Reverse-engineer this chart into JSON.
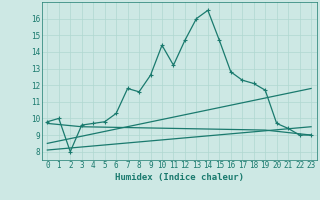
{
  "xlabel": "Humidex (Indice chaleur)",
  "background_color": "#cde8e4",
  "grid_color": "#b0d8d0",
  "line_color": "#1a7a6e",
  "xlim": [
    -0.5,
    23.5
  ],
  "ylim": [
    7.5,
    17.0
  ],
  "yticks": [
    8,
    9,
    10,
    11,
    12,
    13,
    14,
    15,
    16
  ],
  "xticks": [
    0,
    1,
    2,
    3,
    4,
    5,
    6,
    7,
    8,
    9,
    10,
    11,
    12,
    13,
    14,
    15,
    16,
    17,
    18,
    19,
    20,
    21,
    22,
    23
  ],
  "main_x": [
    0,
    1,
    2,
    3,
    4,
    5,
    6,
    7,
    8,
    9,
    10,
    11,
    12,
    13,
    14,
    15,
    16,
    17,
    18,
    19,
    20,
    21,
    22,
    23
  ],
  "main_y": [
    9.8,
    10.0,
    8.0,
    9.6,
    9.7,
    9.8,
    10.3,
    11.8,
    11.6,
    12.6,
    14.4,
    13.2,
    14.7,
    16.0,
    16.5,
    14.7,
    12.8,
    12.3,
    12.1,
    11.7,
    9.7,
    9.4,
    9.0,
    9.0
  ],
  "line2_x": [
    0,
    3,
    19,
    23
  ],
  "line2_y": [
    9.7,
    9.5,
    9.3,
    9.0
  ],
  "line3_x": [
    0,
    23
  ],
  "line3_y": [
    8.5,
    11.8
  ],
  "line4_x": [
    0,
    23
  ],
  "line4_y": [
    8.1,
    9.5
  ],
  "tick_fontsize": 5.5,
  "xlabel_fontsize": 6.5
}
